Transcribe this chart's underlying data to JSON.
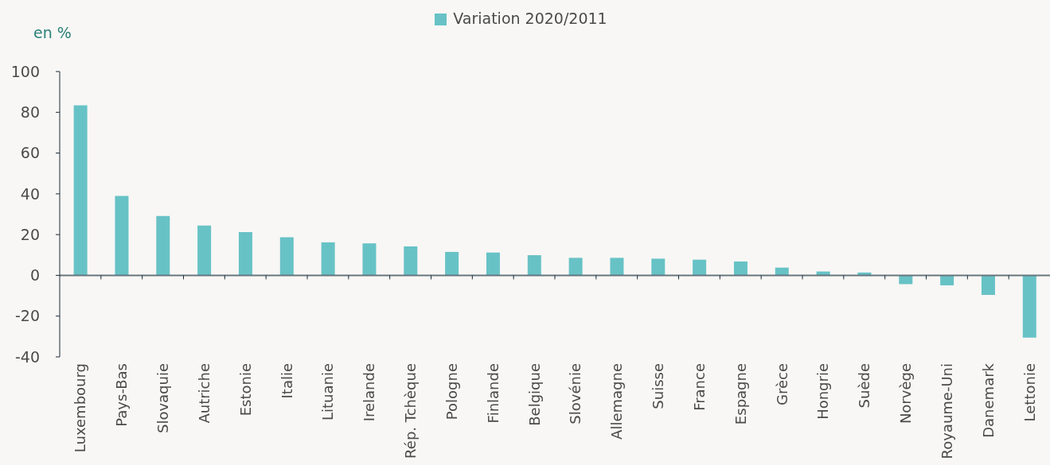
{
  "chart_data": {
    "type": "bar",
    "ylabel": "en %",
    "categories": [
      "Luxembourg",
      "Pays-Bas",
      "Slovaquie",
      "Autriche",
      "Estonie",
      "Italie",
      "Lituanie",
      "Irelande",
      "Rép. Tchèque",
      "Pologne",
      "Finlande",
      "Belgique",
      "Slovénie",
      "Allemagne",
      "Suisse",
      "France",
      "Espagne",
      "Grèce",
      "Hongrie",
      "Suède",
      "Norvège",
      "Royaume-Uni",
      "Danemark",
      "Lettonie"
    ],
    "series": [
      {
        "name": "Variation 2020/2011",
        "color": "#67c2c6",
        "values": [
          83.4,
          39.0,
          29.1,
          24.4,
          21.2,
          18.7,
          16.2,
          15.7,
          14.2,
          11.5,
          11.2,
          9.9,
          8.6,
          8.6,
          8.2,
          7.7,
          6.8,
          3.8,
          1.9,
          1.4,
          -4.3,
          -4.9,
          -9.6,
          -30.5
        ]
      }
    ],
    "ylim": [
      -40,
      100
    ],
    "yticks": [
      -40,
      -20,
      0,
      20,
      40,
      60,
      80,
      100
    ],
    "legend": "top"
  }
}
